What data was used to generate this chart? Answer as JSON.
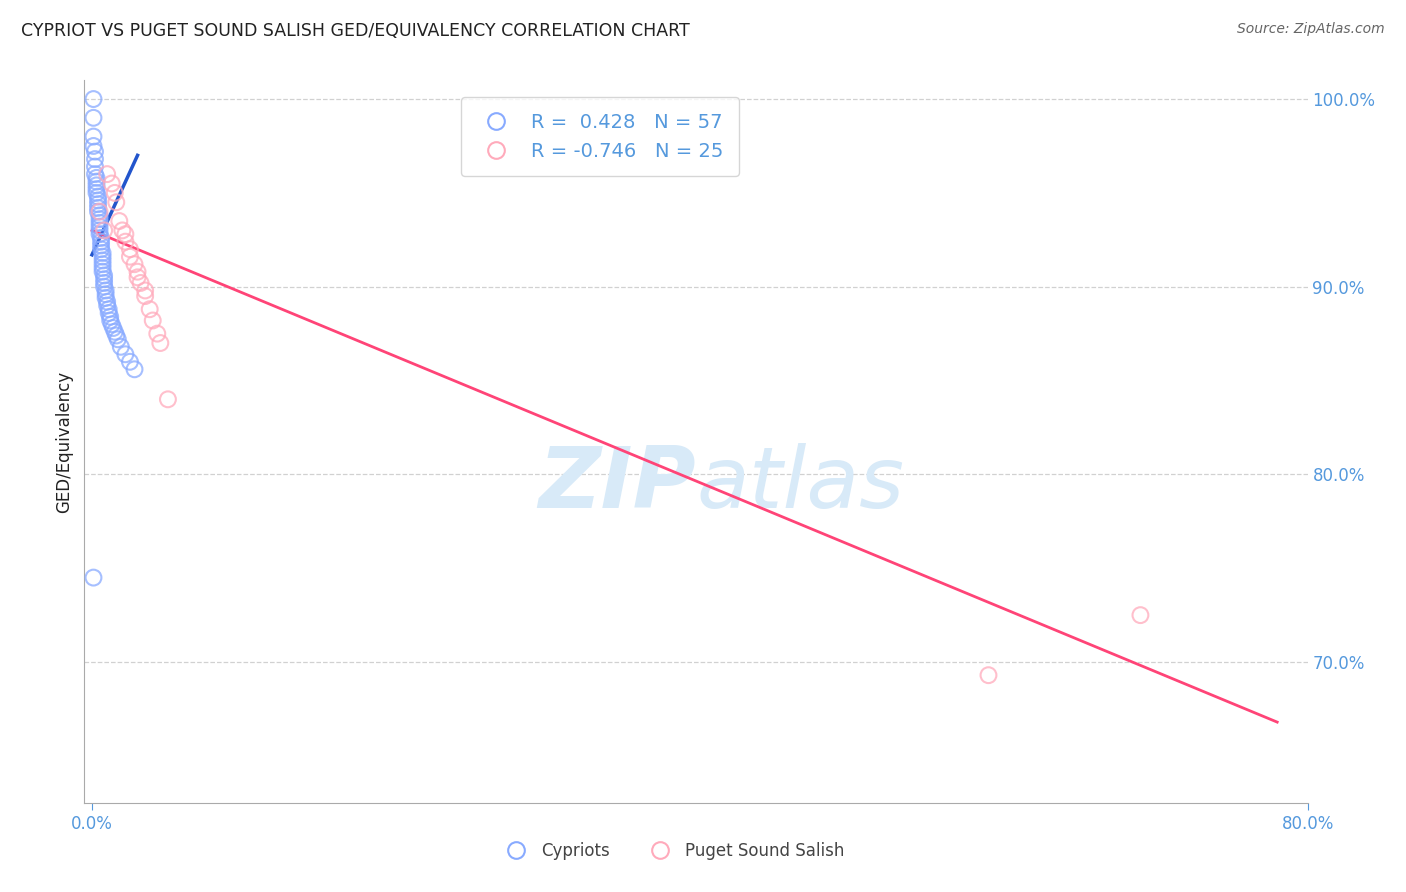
{
  "title": "CYPRIOT VS PUGET SOUND SALISH GED/EQUIVALENCY CORRELATION CHART",
  "source": "Source: ZipAtlas.com",
  "ylabel": "GED/Equivalency",
  "xlim": [
    -0.005,
    0.8
  ],
  "ylim": [
    0.625,
    1.01
  ],
  "yticks": [
    0.7,
    0.8,
    0.9,
    1.0
  ],
  "xticks": [
    0.0,
    0.8
  ],
  "blue_R": 0.428,
  "blue_N": 57,
  "pink_R": -0.746,
  "pink_N": 25,
  "blue_label": "Cypriots",
  "pink_label": "Puget Sound Salish",
  "blue_color": "#88aaff",
  "blue_marker_edge": "#88aaff",
  "blue_line_color": "#2255cc",
  "pink_color": "#ffaabb",
  "pink_marker_edge": "#ffaabb",
  "pink_line_color": "#ff4477",
  "background_color": "#ffffff",
  "watermark_zip": "ZIP",
  "watermark_atlas": "atlas",
  "watermark_color": "#d8eaf8",
  "title_color": "#222222",
  "source_color": "#666666",
  "axis_label_color": "#222222",
  "tick_label_color": "#5599dd",
  "grid_color": "#cccccc",
  "legend_box_color": "#ffffff",
  "legend_border_color": "#cccccc",
  "blue_x": [
    0.001,
    0.001,
    0.001,
    0.001,
    0.002,
    0.002,
    0.002,
    0.002,
    0.003,
    0.003,
    0.003,
    0.003,
    0.003,
    0.004,
    0.004,
    0.004,
    0.004,
    0.004,
    0.005,
    0.005,
    0.005,
    0.005,
    0.005,
    0.005,
    0.006,
    0.006,
    0.006,
    0.006,
    0.007,
    0.007,
    0.007,
    0.007,
    0.007,
    0.007,
    0.008,
    0.008,
    0.008,
    0.008,
    0.009,
    0.009,
    0.009,
    0.01,
    0.01,
    0.011,
    0.011,
    0.012,
    0.012,
    0.013,
    0.014,
    0.015,
    0.016,
    0.017,
    0.019,
    0.022,
    0.025,
    0.028,
    0.001
  ],
  "blue_y": [
    1.0,
    0.99,
    0.98,
    0.975,
    0.972,
    0.968,
    0.964,
    0.96,
    0.958,
    0.956,
    0.954,
    0.952,
    0.95,
    0.948,
    0.946,
    0.944,
    0.942,
    0.94,
    0.938,
    0.936,
    0.934,
    0.932,
    0.93,
    0.928,
    0.926,
    0.924,
    0.922,
    0.92,
    0.918,
    0.916,
    0.914,
    0.912,
    0.91,
    0.908,
    0.906,
    0.904,
    0.902,
    0.9,
    0.898,
    0.896,
    0.894,
    0.892,
    0.89,
    0.888,
    0.886,
    0.884,
    0.882,
    0.88,
    0.878,
    0.876,
    0.874,
    0.872,
    0.868,
    0.864,
    0.86,
    0.856,
    0.745
  ],
  "pink_x": [
    0.005,
    0.008,
    0.01,
    0.013,
    0.015,
    0.016,
    0.018,
    0.02,
    0.022,
    0.022,
    0.025,
    0.025,
    0.028,
    0.03,
    0.03,
    0.032,
    0.035,
    0.035,
    0.038,
    0.04,
    0.043,
    0.045,
    0.05,
    0.59,
    0.69
  ],
  "pink_y": [
    0.94,
    0.93,
    0.96,
    0.955,
    0.95,
    0.945,
    0.935,
    0.93,
    0.928,
    0.924,
    0.92,
    0.916,
    0.912,
    0.908,
    0.905,
    0.902,
    0.898,
    0.895,
    0.888,
    0.882,
    0.875,
    0.87,
    0.84,
    0.693,
    0.725
  ],
  "blue_trendline_x": [
    0.0,
    0.03
  ],
  "blue_trendline_y": [
    0.917,
    0.97
  ],
  "pink_trendline_x": [
    0.0,
    0.78
  ],
  "pink_trendline_y": [
    0.93,
    0.668
  ]
}
